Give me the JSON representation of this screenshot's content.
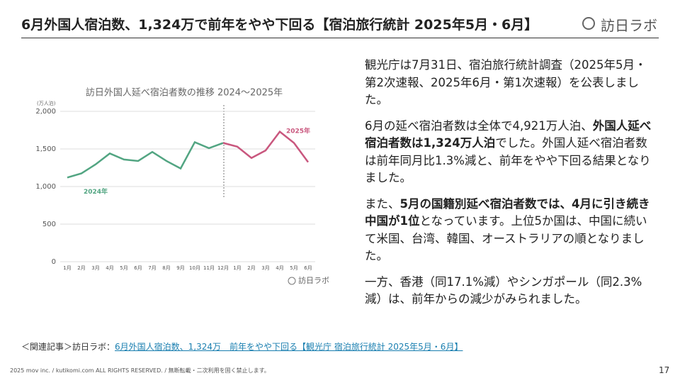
{
  "header": {
    "title": "6月外国人宿泊数、1,324万で前年をやや下回る【宿泊旅行統計 2025年5月・6月】",
    "logo": "訪日ラボ"
  },
  "chart_data": {
    "type": "line",
    "title": "訪日外国人延べ宿泊者数の推移 2024〜2025年",
    "y_label": "(万人泊)",
    "categories": [
      "1月",
      "2月",
      "3月",
      "4月",
      "5月",
      "6月",
      "7月",
      "8月",
      "9月",
      "10月",
      "11月",
      "12月",
      "1月",
      "2月",
      "3月",
      "4月",
      "5月",
      "6月"
    ],
    "series": [
      {
        "name": "2024年",
        "color": "#52a582",
        "values": [
          1120,
          1175,
          1295,
          1440,
          1360,
          1340,
          1460,
          1340,
          1240,
          1590,
          1510,
          1580,
          null,
          null,
          null,
          null,
          null,
          null
        ]
      },
      {
        "name": "2025年",
        "color": "#c9577e",
        "values": [
          null,
          null,
          null,
          null,
          null,
          null,
          null,
          null,
          null,
          null,
          null,
          1580,
          1530,
          1380,
          1480,
          1730,
          1580,
          1324
        ]
      }
    ],
    "ylim": [
      0,
      2000
    ],
    "yticks": [
      0,
      500,
      {
        "value": 1000,
        "label": "1,000"
      },
      {
        "value": 1500,
        "label": "1,500"
      },
      {
        "value": 2000,
        "label": "2,000"
      }
    ],
    "grid": true,
    "source": "訪日ラボ"
  },
  "body": {
    "paragraphs": [
      {
        "segments": [
          {
            "text": "観光庁は7月31日、宿泊旅行統計調査（2025年5月・第2次速報、2025年6月・第1次速報）を公表しました。",
            "bold": false
          }
        ]
      },
      {
        "segments": [
          {
            "text": "6月の延べ宿泊者数は全体で4,921万人泊、",
            "bold": false
          },
          {
            "text": "外国人延べ宿泊者数は1,324万人泊",
            "bold": true
          },
          {
            "text": "でした。外国人延べ宿泊者数は前年同月比1.3%減と、前年をやや下回る結果となりました。",
            "bold": false
          }
        ]
      },
      {
        "segments": [
          {
            "text": "また、",
            "bold": false
          },
          {
            "text": "5月の国籍別延べ宿泊者数では、4月に引き続き中国が1位",
            "bold": true
          },
          {
            "text": "となっています。上位5か国は、中国に続いて米国、台湾、韓国、オーストラリアの順となりました。",
            "bold": false
          }
        ]
      },
      {
        "segments": [
          {
            "text": "一方、香港（同17.1%減）やシンガポール（同2.3%減）は、前年からの減少がみられました。",
            "bold": false
          }
        ]
      }
    ]
  },
  "related": {
    "prefix": "＜関連記事＞訪日ラボ：",
    "link": "6月外国人宿泊数、1,324万　前年をやや下回る【観光庁 宿泊旅行統計 2025年5月・6月】"
  },
  "footer": {
    "copyright": "2025 mov inc. / kutikomi.com ALL RIGHTS RESERVED. / 無断転載・二次利用を固く禁止します。",
    "page": "17"
  }
}
